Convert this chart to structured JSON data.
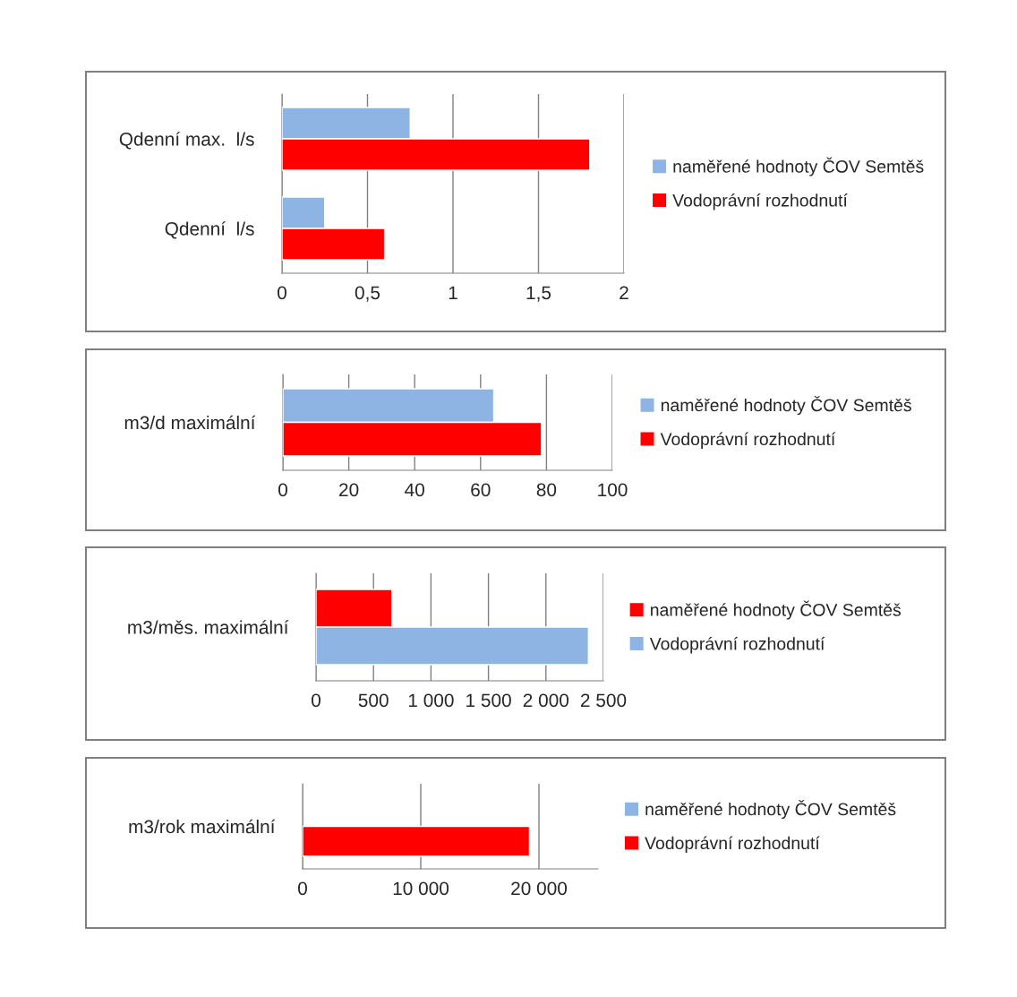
{
  "chart_data": [
    {
      "type": "bar",
      "orientation": "horizontal",
      "categories": [
        "Qdenní max.  l/s",
        "Qdenní  l/s"
      ],
      "series": [
        {
          "name": "naměřené hodnoty ČOV Semtěš",
          "color": "#8eb4e3",
          "values": [
            0.75,
            0.25
          ]
        },
        {
          "name": "Vodoprávní rozhodnutí",
          "color": "#ff0000",
          "values": [
            1.8,
            0.6
          ]
        }
      ],
      "xlim": [
        0,
        2
      ],
      "xticks": [
        0,
        {
          "value": 0.5,
          "label": "0,5"
        },
        1,
        {
          "value": 1.5,
          "label": "1,5"
        },
        2
      ],
      "grid": "x",
      "legend": "right"
    },
    {
      "type": "bar",
      "orientation": "horizontal",
      "categories": [
        "m3/d maximální"
      ],
      "series": [
        {
          "name": "naměřené hodnoty ČOV Semtěš",
          "color": "#8eb4e3",
          "values": [
            64
          ]
        },
        {
          "name": "Vodoprávní rozhodnutí",
          "color": "#ff0000",
          "values": [
            78.5
          ]
        }
      ],
      "xlim": [
        0,
        100
      ],
      "xticks": [
        0,
        20,
        40,
        60,
        80,
        100
      ],
      "grid": "x",
      "legend": "right"
    },
    {
      "type": "bar",
      "orientation": "horizontal",
      "categories": [
        "m3/měs. maximální"
      ],
      "series": [
        {
          "name": "naměřené hodnoty ČOV Semtěš",
          "color": "#ff0000",
          "values": [
            660
          ]
        },
        {
          "name": "Vodoprávní rozhodnutí",
          "color": "#8eb4e3",
          "values": [
            2370
          ]
        }
      ],
      "xlim": [
        0,
        2500
      ],
      "xticks": [
        0,
        500,
        {
          "value": 1000,
          "label": "1 000"
        },
        {
          "value": 1500,
          "label": "1 500"
        },
        {
          "value": 2000,
          "label": "2 000"
        },
        {
          "value": 2500,
          "label": "2 500"
        }
      ],
      "grid": "x",
      "legend": "right"
    },
    {
      "type": "bar",
      "orientation": "horizontal",
      "categories": [
        "m3/rok maximální"
      ],
      "series": [
        {
          "name": "naměřené hodnoty ČOV Semtěš",
          "color": "#8eb4e3",
          "values": [
            null
          ]
        },
        {
          "name": "Vodoprávní rozhodnutí",
          "color": "#ff0000",
          "values": [
            19200
          ]
        }
      ],
      "xlim": [
        0,
        25000
      ],
      "xticks": [
        0,
        {
          "value": 10000,
          "label": "10 000"
        },
        {
          "value": 20000,
          "label": "20 000"
        }
      ],
      "grid": "x",
      "legend": "right"
    }
  ]
}
